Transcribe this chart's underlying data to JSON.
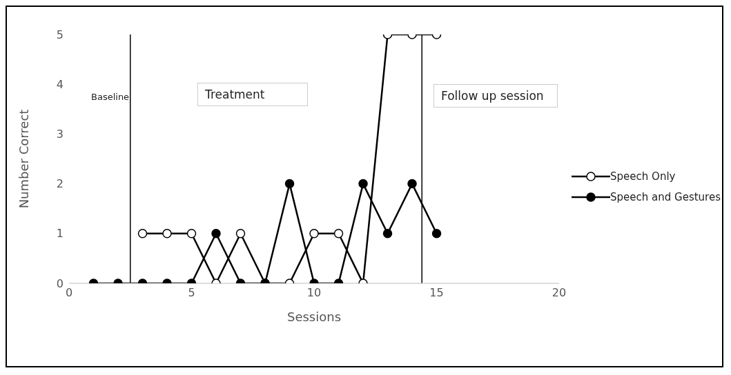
{
  "chart_data": {
    "type": "line",
    "xlabel": "Sessions",
    "ylabel": "Number Correct",
    "xlim": [
      0,
      20
    ],
    "xticks": [
      0,
      5,
      10,
      15,
      20
    ],
    "ylim": [
      0,
      5
    ],
    "yticks": [
      0,
      1,
      2,
      3,
      4,
      5
    ],
    "grid": false,
    "legend": "right",
    "marker": "circle",
    "line_style": "solid",
    "annotations": [
      "Baseline",
      "Treatment",
      "Follow up session"
    ],
    "ref_lines": [
      {
        "axis": "x",
        "value": 2.5,
        "color": "#000000"
      },
      {
        "axis": "x",
        "value": 14.4,
        "color": "#000000"
      }
    ],
    "series": [
      {
        "name": "Speech Only",
        "color": "#000000",
        "colors": [
          "#ffffff",
          "#ffffff",
          "#ffffff",
          "#ffffff",
          "#ffffff",
          "#ffffff",
          "#ffffff",
          "#ffffff",
          "#ffffff",
          "#ffffff",
          "#ffffff",
          "#ffffff",
          "#ffffff"
        ],
        "x": [
          3,
          4,
          5,
          6,
          7,
          8,
          9,
          10,
          11,
          12,
          13,
          14,
          15
        ],
        "values": [
          1,
          1,
          1,
          0,
          1,
          0,
          0,
          1,
          1,
          0,
          5,
          5,
          5
        ]
      },
      {
        "name": "Speech and Gestures",
        "color": "#000000",
        "colors": [
          "#000000",
          "#000000",
          "#000000",
          "#000000",
          "#000000",
          "#000000",
          "#000000",
          "#000000",
          "#000000",
          "#000000",
          "#000000",
          "#000000",
          "#000000",
          "#000000",
          "#000000"
        ],
        "x": [
          1,
          2,
          3,
          4,
          5,
          6,
          7,
          8,
          9,
          10,
          11,
          12,
          13,
          14,
          15
        ],
        "values": [
          0,
          0,
          0,
          0,
          0,
          1,
          0,
          0,
          2,
          0,
          0,
          2,
          1,
          2,
          1
        ]
      }
    ]
  }
}
